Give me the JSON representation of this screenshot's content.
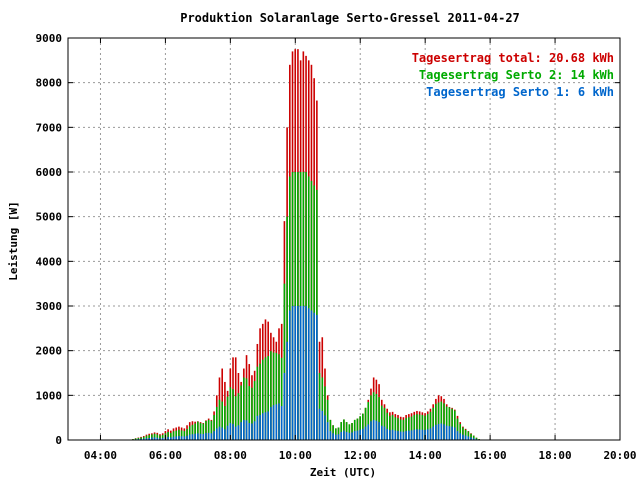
{
  "chart_data": {
    "type": "bar",
    "stacked": true,
    "title": "Produktion Solaranlage Serto-Gressel 2011-04-27",
    "xlabel": "Zeit (UTC)",
    "ylabel": "Leistung [W]",
    "xlim": [
      3.0,
      20.0
    ],
    "ylim": [
      0,
      9000
    ],
    "grid": true,
    "legend_position": "top-right",
    "xticks": [
      {
        "value": 4,
        "label": "04:00"
      },
      {
        "value": 6,
        "label": "06:00"
      },
      {
        "value": 8,
        "label": "08:00"
      },
      {
        "value": 10,
        "label": "10:00"
      },
      {
        "value": 12,
        "label": "12:00"
      },
      {
        "value": 14,
        "label": "14:00"
      },
      {
        "value": 16,
        "label": "16:00"
      },
      {
        "value": 18,
        "label": "18:00"
      },
      {
        "value": 20,
        "label": "20:00"
      }
    ],
    "yticks": [
      0,
      1000,
      2000,
      3000,
      4000,
      5000,
      6000,
      7000,
      8000,
      9000
    ],
    "legend": [
      {
        "label": "Tagesertrag total: 20.68 kWh",
        "color": "#cc0000"
      },
      {
        "label": "Tagesertrag Serto 2: 14 kWh",
        "color": "#00aa00"
      },
      {
        "label": "Tagesertrag Serto 1: 6 kWh",
        "color": "#0066cc"
      }
    ],
    "series": [
      {
        "name": "Serto 1",
        "color": "#0066cc"
      },
      {
        "name": "Serto 2",
        "color": "#00aa00"
      },
      {
        "name": "total",
        "color": "#cc0000"
      }
    ],
    "x_start_hour": 5.0,
    "x_step_hour": 0.0833,
    "serto1": [
      10,
      15,
      20,
      25,
      30,
      40,
      45,
      55,
      60,
      50,
      40,
      45,
      60,
      70,
      60,
      75,
      80,
      90,
      85,
      80,
      95,
      120,
      130,
      140,
      150,
      140,
      135,
      155,
      160,
      150,
      200,
      260,
      300,
      280,
      240,
      320,
      380,
      360,
      300,
      330,
      400,
      450,
      440,
      380,
      370,
      420,
      540,
      560,
      600,
      620,
      640,
      740,
      780,
      800,
      820,
      760,
      1500,
      2200,
      2900,
      3000,
      3000,
      3000,
      3000,
      3000,
      3000,
      2950,
      2900,
      2850,
      2800,
      700,
      650,
      550,
      400,
      200,
      150,
      120,
      130,
      180,
      210,
      180,
      160,
      170,
      200,
      210,
      230,
      250,
      300,
      350,
      420,
      450,
      430,
      400,
      320,
      300,
      250,
      220,
      230,
      210,
      200,
      190,
      185,
      200,
      210,
      215,
      230,
      240,
      235,
      230,
      225,
      240,
      260,
      300,
      340,
      360,
      370,
      350,
      320,
      310,
      300,
      280,
      200,
      150,
      120,
      100,
      80,
      60,
      40,
      20,
      10,
      5
    ],
    "serto2": [
      10,
      20,
      25,
      30,
      40,
      55,
      65,
      70,
      80,
      75,
      60,
      70,
      90,
      110,
      100,
      120,
      130,
      140,
      130,
      120,
      150,
      190,
      210,
      230,
      260,
      240,
      230,
      270,
      290,
      280,
      360,
      480,
      600,
      580,
      520,
      650,
      800,
      780,
      680,
      720,
      820,
      950,
      940,
      830,
      800,
      900,
      1100,
      1150,
      1200,
      1230,
      1240,
      1250,
      1180,
      1150,
      1100,
      1080,
      2000,
      2800,
      3000,
      3000,
      3000,
      3000,
      3000,
      3000,
      3000,
      2950,
      2900,
      2850,
      2800,
      800,
      750,
      650,
      500,
      250,
      180,
      140,
      150,
      220,
      250,
      220,
      190,
      210,
      250,
      270,
      300,
      340,
      420,
      500,
      580,
      620,
      600,
      560,
      450,
      420,
      360,
      320,
      330,
      300,
      290,
      270,
      265,
      290,
      300,
      310,
      330,
      340,
      335,
      330,
      320,
      340,
      370,
      420,
      470,
      480,
      490,
      470,
      430,
      420,
      400,
      380,
      280,
      210,
      160,
      130,
      110,
      80,
      55,
      30,
      15,
      5
    ],
    "total": [
      20,
      40,
      55,
      70,
      90,
      120,
      140,
      150,
      170,
      160,
      130,
      150,
      200,
      240,
      210,
      260,
      280,
      300,
      280,
      260,
      330,
      400,
      420,
      410,
      420,
      400,
      380,
      440,
      480,
      450,
      640,
      1000,
      1400,
      1600,
      1300,
      1100,
      1600,
      1850,
      1850,
      1500,
      1300,
      1600,
      1900,
      1700,
      1450,
      1550,
      2150,
      2500,
      2600,
      2700,
      2650,
      2400,
      2300,
      2200,
      2500,
      2600,
      4900,
      7000,
      8400,
      8700,
      8750,
      8750,
      8500,
      8700,
      8600,
      8500,
      8400,
      8100,
      7600,
      2200,
      2300,
      1600,
      1000,
      450,
      330,
      260,
      280,
      400,
      460,
      400,
      350,
      380,
      450,
      480,
      530,
      590,
      720,
      900,
      1150,
      1400,
      1350,
      1250,
      900,
      800,
      700,
      620,
      630,
      580,
      560,
      520,
      510,
      560,
      580,
      600,
      630,
      650,
      640,
      620,
      600,
      640,
      700,
      800,
      920,
      1000,
      980,
      920,
      800,
      740,
      720,
      680,
      540,
      400,
      300,
      250,
      200,
      150,
      100,
      50,
      20,
      10
    ]
  }
}
